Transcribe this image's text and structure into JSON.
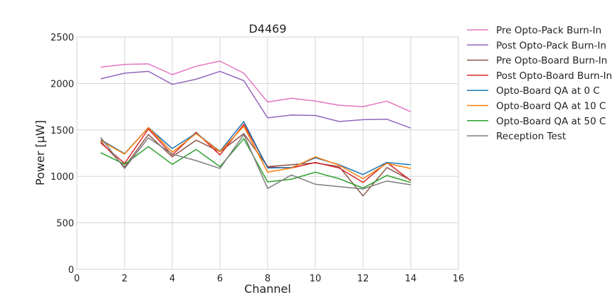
{
  "chart_data": {
    "type": "line",
    "title": "D4469",
    "xlabel": "Channel",
    "ylabel": "Power [μW]",
    "xlim": [
      0,
      16
    ],
    "ylim": [
      0,
      2500
    ],
    "xticks": [
      0,
      2,
      4,
      6,
      8,
      10,
      12,
      14,
      16
    ],
    "yticks": [
      0,
      500,
      1000,
      1500,
      2000,
      2500
    ],
    "grid": true,
    "legend_position": "outside-right",
    "x": [
      1,
      2,
      3,
      4,
      5,
      6,
      7,
      8,
      9,
      10,
      11,
      12,
      13,
      14
    ],
    "series": [
      {
        "name": "Pre Opto-Pack Burn-In",
        "color": "#e377c2",
        "values": [
          2175,
          2205,
          2210,
          2095,
          2185,
          2240,
          2110,
          1800,
          1840,
          1810,
          1765,
          1750,
          1810,
          1695
        ]
      },
      {
        "name": "Post Opto-Pack Burn-In",
        "color": "#9467bd",
        "values": [
          2050,
          2110,
          2130,
          1990,
          2045,
          2130,
          2030,
          1630,
          1660,
          1655,
          1590,
          1610,
          1615,
          1520
        ]
      },
      {
        "name": "Pre Opto-Board Burn-In",
        "color": "#8c564b",
        "values": [
          1375,
          1100,
          1450,
          1210,
          1390,
          1265,
          1460,
          1105,
          1125,
          1145,
          1105,
          790,
          1095,
          960
        ]
      },
      {
        "name": "Post Opto-Board Burn-In",
        "color": "#d62728",
        "values": [
          1360,
          1140,
          1510,
          1230,
          1475,
          1230,
          1560,
          1100,
          1090,
          1150,
          1090,
          935,
          1150,
          955
        ]
      },
      {
        "name": "Opto-Board QA at 0 C",
        "color": "#1f77b4",
        "values": [
          1395,
          1245,
          1525,
          1300,
          1465,
          1270,
          1590,
          1090,
          1095,
          1200,
          1125,
          1020,
          1150,
          1125
        ]
      },
      {
        "name": "Opto-Board QA at 10 C",
        "color": "#ff7f0e",
        "values": [
          1385,
          1240,
          1525,
          1260,
          1460,
          1265,
          1540,
          1045,
          1090,
          1210,
          1120,
          975,
          1140,
          1085
        ]
      },
      {
        "name": "Opto-Board QA at 50 C",
        "color": "#2ca02c",
        "values": [
          1255,
          1130,
          1320,
          1130,
          1290,
          1105,
          1405,
          940,
          970,
          1045,
          975,
          875,
          1010,
          935
        ]
      },
      {
        "name": "Reception Test",
        "color": "#7f7f7f",
        "values": [
          1420,
          1085,
          1415,
          1240,
          1170,
          1085,
          1450,
          870,
          1015,
          915,
          890,
          865,
          950,
          910
        ]
      }
    ]
  }
}
